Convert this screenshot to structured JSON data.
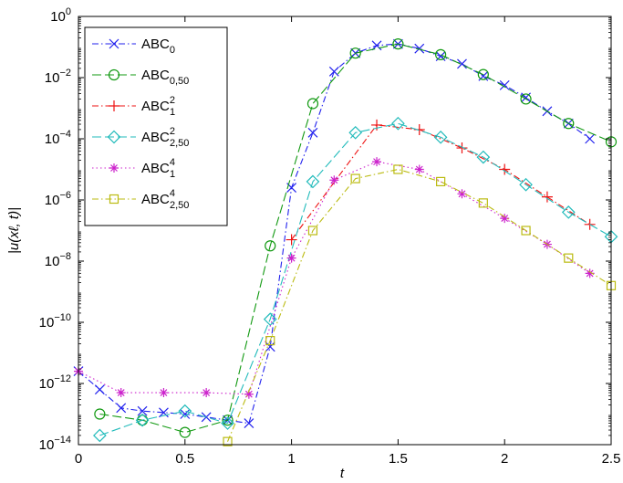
{
  "chart_data": {
    "type": "line",
    "xlabel": "t",
    "ylabel": "|u(xℓ, t)|",
    "xlim": [
      0,
      2.5
    ],
    "ylim_log10": [
      -14,
      0
    ],
    "yscale": "log",
    "grid": false,
    "legend_position": "top-left",
    "x_ticks": [
      {
        "value": 0,
        "label": "0"
      },
      {
        "value": 0.5,
        "label": "0.5"
      },
      {
        "value": 1,
        "label": "1"
      },
      {
        "value": 1.5,
        "label": "1.5"
      },
      {
        "value": 2,
        "label": "2"
      },
      {
        "value": 2.5,
        "label": "2.5"
      }
    ],
    "y_ticks": [
      {
        "exp": -14,
        "base": "10",
        "sup": "−14"
      },
      {
        "exp": -12,
        "base": "10",
        "sup": "−12"
      },
      {
        "exp": -10,
        "base": "10",
        "sup": "−10"
      },
      {
        "exp": -8,
        "base": "10",
        "sup": "−8"
      },
      {
        "exp": -6,
        "base": "10",
        "sup": "−6"
      },
      {
        "exp": -4,
        "base": "10",
        "sup": "−4"
      },
      {
        "exp": -2,
        "base": "10",
        "sup": "−2"
      },
      {
        "exp": 0,
        "base": "10",
        "sup": "0"
      }
    ],
    "series": [
      {
        "name": "ABC_0",
        "label_base": "ABC",
        "label_sup": "",
        "label_sub": "0",
        "color": "#2222ee",
        "marker": "x",
        "dash": "7,3,1.5,3",
        "x": [
          0,
          0.1,
          0.2,
          0.3,
          0.4,
          0.5,
          0.6,
          0.7,
          0.8,
          0.9,
          1.0,
          1.1,
          1.2,
          1.3,
          1.4,
          1.5,
          1.6,
          1.7,
          1.8,
          1.9,
          2.0,
          2.1,
          2.2,
          2.3,
          2.4
        ],
        "log10y": [
          -11.6,
          -12.2,
          -12.8,
          -12.9,
          -12.95,
          -13.0,
          -13.1,
          -13.2,
          -13.3,
          -10.8,
          -5.6,
          -3.8,
          -1.8,
          -1.2,
          -0.95,
          -0.9,
          -1.05,
          -1.3,
          -1.55,
          -1.95,
          -2.25,
          -2.65,
          -3.1,
          -3.5,
          -4.0
        ]
      },
      {
        "name": "ABC_0,50",
        "label_base": "ABC",
        "label_sup": "",
        "label_sub": "0,50",
        "color": "#119911",
        "marker": "circle",
        "dash": "10,4",
        "x": [
          0.1,
          0.3,
          0.5,
          0.7,
          0.9,
          1.1,
          1.3,
          1.5,
          1.7,
          1.9,
          2.1,
          2.3,
          2.5
        ],
        "log10y": [
          -13.0,
          -13.2,
          -13.6,
          -13.2,
          -7.5,
          -2.85,
          -1.2,
          -0.9,
          -1.25,
          -1.9,
          -2.7,
          -3.5,
          -4.1
        ]
      },
      {
        "name": "ABC_1^2",
        "label_base": "ABC",
        "label_sup": "2",
        "label_sub": "1",
        "color": "#ee1111",
        "marker": "plus",
        "dash": "7,3,1.5,3",
        "x": [
          1.0,
          1.4,
          1.6,
          1.8,
          2.0,
          2.2,
          2.4
        ],
        "log10y": [
          -7.3,
          -3.55,
          -3.7,
          -4.3,
          -5.0,
          -5.9,
          -6.8
        ]
      },
      {
        "name": "ABC_2,50^2",
        "label_base": "ABC",
        "label_sup": "2",
        "label_sub": "2,50",
        "color": "#22bbbb",
        "marker": "diamond",
        "dash": "10,4",
        "x": [
          0.1,
          0.3,
          0.5,
          0.7,
          0.9,
          1.1,
          1.3,
          1.5,
          1.7,
          1.9,
          2.1,
          2.3,
          2.5
        ],
        "log10y": [
          -13.7,
          -13.2,
          -12.9,
          -13.3,
          -9.9,
          -5.4,
          -3.8,
          -3.5,
          -3.95,
          -4.6,
          -5.5,
          -6.4,
          -7.2
        ]
      },
      {
        "name": "ABC_1^4",
        "label_base": "ABC",
        "label_sup": "4",
        "label_sub": "1",
        "color": "#cc22cc",
        "marker": "star",
        "dash": "1.5,3",
        "x": [
          0,
          0.2,
          0.4,
          0.6,
          0.8,
          1.0,
          1.2,
          1.4,
          1.6,
          1.8,
          2.0,
          2.2,
          2.4
        ],
        "log10y": [
          -11.6,
          -12.3,
          -12.3,
          -12.3,
          -12.35,
          -7.9,
          -5.35,
          -4.75,
          -5.0,
          -5.8,
          -6.6,
          -7.45,
          -8.4
        ]
      },
      {
        "name": "ABC_2,50^4",
        "label_base": "ABC",
        "label_sup": "4",
        "label_sub": "2,50",
        "color": "#bbbb11",
        "marker": "square",
        "dash": "7,3,1.5,3",
        "x": [
          0.7,
          0.9,
          1.1,
          1.3,
          1.5,
          1.7,
          1.9,
          2.1,
          2.3,
          2.5
        ],
        "log10y": [
          -13.9,
          -10.6,
          -7.0,
          -5.3,
          -5.0,
          -5.4,
          -6.1,
          -7.0,
          -7.9,
          -8.8
        ]
      }
    ]
  }
}
